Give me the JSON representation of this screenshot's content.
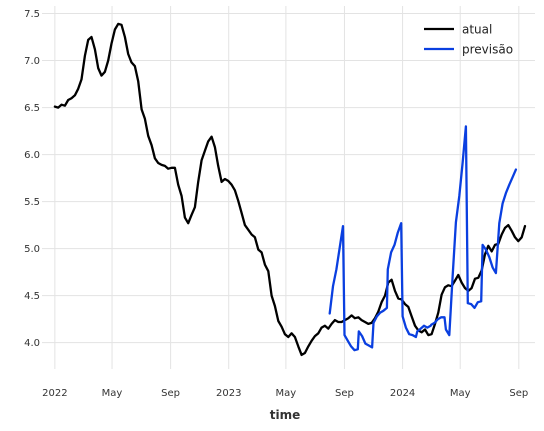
{
  "chart_data": {
    "type": "line",
    "xlabel": "time",
    "ylabel": "",
    "x_ticks": [
      "2022-01-01",
      "2022-05-01",
      "2022-09-01",
      "2023-01-01",
      "2023-05-01",
      "2023-09-01",
      "2024-01-01",
      "2024-05-01",
      "2024-09-01"
    ],
    "x_tick_labels": [
      "2022",
      "May",
      "Sep",
      "2023",
      "May",
      "Sep",
      "2024",
      "May",
      "Sep"
    ],
    "y_ticks": [
      4.0,
      4.5,
      5.0,
      5.5,
      6.0,
      6.5,
      7.0,
      7.5
    ],
    "y_tick_labels": [
      "4.0",
      "4.5",
      "5.0",
      "5.5",
      "6.0",
      "6.5",
      "7.0",
      "7.5"
    ],
    "xlim": [
      "2021-12-05",
      "2024-10-05"
    ],
    "ylim": [
      3.72,
      7.58
    ],
    "grid": true,
    "legend_position": "top-right",
    "series": [
      {
        "name": "atual",
        "color": "#000000",
        "points": [
          [
            "2022-01-01",
            6.51
          ],
          [
            "2022-01-08",
            6.5
          ],
          [
            "2022-01-15",
            6.53
          ],
          [
            "2022-01-22",
            6.52
          ],
          [
            "2022-01-29",
            6.58
          ],
          [
            "2022-02-05",
            6.6
          ],
          [
            "2022-02-12",
            6.63
          ],
          [
            "2022-02-19",
            6.7
          ],
          [
            "2022-02-26",
            6.8
          ],
          [
            "2022-03-05",
            7.05
          ],
          [
            "2022-03-12",
            7.22
          ],
          [
            "2022-03-19",
            7.25
          ],
          [
            "2022-03-26",
            7.12
          ],
          [
            "2022-04-02",
            6.92
          ],
          [
            "2022-04-09",
            6.84
          ],
          [
            "2022-04-16",
            6.88
          ],
          [
            "2022-04-23",
            7.0
          ],
          [
            "2022-04-30",
            7.18
          ],
          [
            "2022-05-07",
            7.33
          ],
          [
            "2022-05-14",
            7.39
          ],
          [
            "2022-05-21",
            7.38
          ],
          [
            "2022-05-28",
            7.25
          ],
          [
            "2022-06-04",
            7.07
          ],
          [
            "2022-06-11",
            6.98
          ],
          [
            "2022-06-18",
            6.94
          ],
          [
            "2022-06-25",
            6.78
          ],
          [
            "2022-07-02",
            6.48
          ],
          [
            "2022-07-09",
            6.38
          ],
          [
            "2022-07-16",
            6.2
          ],
          [
            "2022-07-23",
            6.1
          ],
          [
            "2022-07-30",
            5.96
          ],
          [
            "2022-08-06",
            5.91
          ],
          [
            "2022-08-13",
            5.89
          ],
          [
            "2022-08-20",
            5.88
          ],
          [
            "2022-08-27",
            5.85
          ],
          [
            "2022-09-03",
            5.86
          ],
          [
            "2022-09-10",
            5.86
          ],
          [
            "2022-09-17",
            5.68
          ],
          [
            "2022-09-24",
            5.56
          ],
          [
            "2022-10-01",
            5.33
          ],
          [
            "2022-10-08",
            5.27
          ],
          [
            "2022-10-15",
            5.36
          ],
          [
            "2022-10-22",
            5.44
          ],
          [
            "2022-10-29",
            5.71
          ],
          [
            "2022-11-05",
            5.94
          ],
          [
            "2022-11-12",
            6.04
          ],
          [
            "2022-11-19",
            6.14
          ],
          [
            "2022-11-26",
            6.19
          ],
          [
            "2022-12-03",
            6.08
          ],
          [
            "2022-12-10",
            5.88
          ],
          [
            "2022-12-17",
            5.71
          ],
          [
            "2022-12-24",
            5.74
          ],
          [
            "2022-12-31",
            5.72
          ],
          [
            "2023-01-07",
            5.68
          ],
          [
            "2023-01-14",
            5.62
          ],
          [
            "2023-01-21",
            5.51
          ],
          [
            "2023-01-28",
            5.38
          ],
          [
            "2023-02-04",
            5.25
          ],
          [
            "2023-02-11",
            5.2
          ],
          [
            "2023-02-18",
            5.15
          ],
          [
            "2023-02-25",
            5.12
          ],
          [
            "2023-03-04",
            4.99
          ],
          [
            "2023-03-11",
            4.96
          ],
          [
            "2023-03-18",
            4.83
          ],
          [
            "2023-03-25",
            4.76
          ],
          [
            "2023-04-01",
            4.5
          ],
          [
            "2023-04-08",
            4.39
          ],
          [
            "2023-04-15",
            4.23
          ],
          [
            "2023-04-22",
            4.17
          ],
          [
            "2023-04-29",
            4.09
          ],
          [
            "2023-05-06",
            4.06
          ],
          [
            "2023-05-13",
            4.1
          ],
          [
            "2023-05-20",
            4.06
          ],
          [
            "2023-05-27",
            3.96
          ],
          [
            "2023-06-03",
            3.87
          ],
          [
            "2023-06-10",
            3.89
          ],
          [
            "2023-06-17",
            3.96
          ],
          [
            "2023-06-24",
            4.02
          ],
          [
            "2023-07-01",
            4.07
          ],
          [
            "2023-07-08",
            4.1
          ],
          [
            "2023-07-15",
            4.16
          ],
          [
            "2023-07-22",
            4.18
          ],
          [
            "2023-07-29",
            4.15
          ],
          [
            "2023-08-05",
            4.2
          ],
          [
            "2023-08-12",
            4.24
          ],
          [
            "2023-08-19",
            4.22
          ],
          [
            "2023-08-26",
            4.22
          ],
          [
            "2023-09-02",
            4.24
          ],
          [
            "2023-09-09",
            4.26
          ],
          [
            "2023-09-16",
            4.29
          ],
          [
            "2023-09-23",
            4.26
          ],
          [
            "2023-09-30",
            4.27
          ],
          [
            "2023-10-07",
            4.24
          ],
          [
            "2023-10-14",
            4.22
          ],
          [
            "2023-10-21",
            4.2
          ],
          [
            "2023-10-28",
            4.21
          ],
          [
            "2023-11-04",
            4.26
          ],
          [
            "2023-11-11",
            4.33
          ],
          [
            "2023-11-18",
            4.43
          ],
          [
            "2023-11-25",
            4.5
          ],
          [
            "2023-12-02",
            4.64
          ],
          [
            "2023-12-09",
            4.67
          ],
          [
            "2023-12-16",
            4.55
          ],
          [
            "2023-12-23",
            4.47
          ],
          [
            "2023-12-30",
            4.46
          ],
          [
            "2024-01-06",
            4.41
          ],
          [
            "2024-01-13",
            4.38
          ],
          [
            "2024-01-20",
            4.28
          ],
          [
            "2024-01-27",
            4.18
          ],
          [
            "2024-02-03",
            4.13
          ],
          [
            "2024-02-10",
            4.11
          ],
          [
            "2024-02-17",
            4.14
          ],
          [
            "2024-02-24",
            4.08
          ],
          [
            "2024-03-02",
            4.09
          ],
          [
            "2024-03-09",
            4.2
          ],
          [
            "2024-03-16",
            4.32
          ],
          [
            "2024-03-23",
            4.51
          ],
          [
            "2024-03-30",
            4.59
          ],
          [
            "2024-04-06",
            4.61
          ],
          [
            "2024-04-13",
            4.6
          ],
          [
            "2024-04-20",
            4.66
          ],
          [
            "2024-04-27",
            4.72
          ],
          [
            "2024-05-04",
            4.64
          ],
          [
            "2024-05-11",
            4.58
          ],
          [
            "2024-05-18",
            4.55
          ],
          [
            "2024-05-25",
            4.58
          ],
          [
            "2024-06-01",
            4.68
          ],
          [
            "2024-06-08",
            4.69
          ],
          [
            "2024-06-15",
            4.77
          ],
          [
            "2024-06-22",
            4.94
          ],
          [
            "2024-06-29",
            5.03
          ],
          [
            "2024-07-06",
            4.97
          ],
          [
            "2024-07-13",
            5.04
          ],
          [
            "2024-07-20",
            5.05
          ],
          [
            "2024-07-27",
            5.15
          ],
          [
            "2024-08-03",
            5.22
          ],
          [
            "2024-08-10",
            5.25
          ],
          [
            "2024-08-17",
            5.19
          ],
          [
            "2024-08-24",
            5.12
          ],
          [
            "2024-08-31",
            5.08
          ],
          [
            "2024-09-07",
            5.12
          ],
          [
            "2024-09-14",
            5.24
          ]
        ]
      },
      {
        "name": "previsão",
        "color": "#0a3fe0",
        "points": [
          [
            "2023-08-01",
            4.31
          ],
          [
            "2023-08-08",
            4.6
          ],
          [
            "2023-08-15",
            4.78
          ],
          [
            "2023-08-22",
            5.01
          ],
          [
            "2023-08-29",
            5.24
          ],
          [
            "2023-09-01",
            4.08
          ],
          [
            "2023-09-08",
            4.02
          ],
          [
            "2023-09-15",
            3.96
          ],
          [
            "2023-09-22",
            3.92
          ],
          [
            "2023-09-29",
            3.93
          ],
          [
            "2023-10-01",
            4.12
          ],
          [
            "2023-10-08",
            4.07
          ],
          [
            "2023-10-15",
            3.99
          ],
          [
            "2023-10-22",
            3.97
          ],
          [
            "2023-10-29",
            3.95
          ],
          [
            "2023-11-01",
            4.21
          ],
          [
            "2023-11-08",
            4.28
          ],
          [
            "2023-11-15",
            4.32
          ],
          [
            "2023-11-22",
            4.34
          ],
          [
            "2023-11-29",
            4.37
          ],
          [
            "2023-12-01",
            4.78
          ],
          [
            "2023-12-08",
            4.96
          ],
          [
            "2023-12-15",
            5.04
          ],
          [
            "2023-12-22",
            5.17
          ],
          [
            "2023-12-29",
            5.27
          ],
          [
            "2024-01-01",
            4.28
          ],
          [
            "2024-01-08",
            4.16
          ],
          [
            "2024-01-15",
            4.09
          ],
          [
            "2024-01-22",
            4.08
          ],
          [
            "2024-01-29",
            4.06
          ],
          [
            "2024-02-01",
            4.12
          ],
          [
            "2024-02-08",
            4.15
          ],
          [
            "2024-02-15",
            4.18
          ],
          [
            "2024-02-22",
            4.16
          ],
          [
            "2024-02-29",
            4.18
          ],
          [
            "2024-03-01",
            4.19
          ],
          [
            "2024-03-08",
            4.21
          ],
          [
            "2024-03-15",
            4.25
          ],
          [
            "2024-03-22",
            4.27
          ],
          [
            "2024-03-29",
            4.27
          ],
          [
            "2024-04-01",
            4.14
          ],
          [
            "2024-04-08",
            4.08
          ],
          [
            "2024-04-15",
            4.7
          ],
          [
            "2024-04-22",
            5.28
          ],
          [
            "2024-04-29",
            5.56
          ],
          [
            "2024-05-06",
            5.91
          ],
          [
            "2024-05-13",
            6.3
          ],
          [
            "2024-05-17",
            4.42
          ],
          [
            "2024-05-24",
            4.41
          ],
          [
            "2024-05-31",
            4.37
          ],
          [
            "2024-06-07",
            4.43
          ],
          [
            "2024-06-14",
            4.44
          ],
          [
            "2024-06-17",
            5.04
          ],
          [
            "2024-06-24",
            4.99
          ],
          [
            "2024-07-01",
            4.91
          ],
          [
            "2024-07-08",
            4.8
          ],
          [
            "2024-07-15",
            4.74
          ],
          [
            "2024-07-22",
            5.27
          ],
          [
            "2024-07-29",
            5.48
          ],
          [
            "2024-08-05",
            5.59
          ],
          [
            "2024-08-12",
            5.68
          ],
          [
            "2024-08-19",
            5.76
          ],
          [
            "2024-08-26",
            5.84
          ]
        ]
      }
    ]
  }
}
